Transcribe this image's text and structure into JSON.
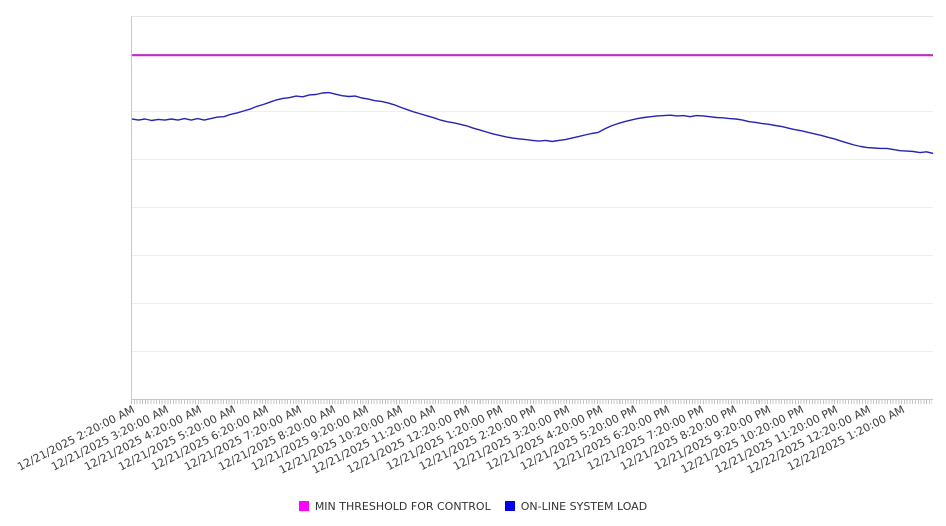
{
  "chart_data": {
    "type": "line",
    "title": "",
    "xlabel": "",
    "ylabel": "",
    "y_axis": {
      "min": 0,
      "max": 100,
      "tick_labels_visible": false
    },
    "grid": true,
    "legend_position": "bottom",
    "x_axis": {
      "tick_labels": [
        "12/21/2025 2:20:00 AM",
        "12/21/2025 3:20:00 AM",
        "12/21/2025 4:20:00 AM",
        "12/21/2025 5:20:00 AM",
        "12/21/2025 6:20:00 AM",
        "12/21/2025 7:20:00 AM",
        "12/21/2025 8:20:00 AM",
        "12/21/2025 9:20:00 AM",
        "12/21/2025 10:20:00 AM",
        "12/21/2025 11:20:00 AM",
        "12/21/2025 12:20:00 PM",
        "12/21/2025 1:20:00 PM",
        "12/21/2025 2:20:00 PM",
        "12/21/2025 3:20:00 PM",
        "12/21/2025 4:20:00 PM",
        "12/21/2025 5:20:00 PM",
        "12/21/2025 6:20:00 PM",
        "12/21/2025 7:20:00 PM",
        "12/21/2025 8:20:00 PM",
        "12/21/2025 9:20:00 PM",
        "12/21/2025 10:20:00 PM",
        "12/21/2025 11:20:00 PM",
        "12/22/2025 12:20:00 AM",
        "12/22/2025 1:20:00 AM"
      ]
    },
    "series": [
      {
        "name": "MIN THRESHOLD FOR CONTROL",
        "type": "constant-line",
        "value": 90,
        "line_color": "#c22ac2",
        "legend_color": "#ff00ff"
      },
      {
        "name": "ON-LINE SYSTEM LOAD",
        "type": "line",
        "line_color": "#2424b4",
        "legend_color": "#0000ee",
        "values": [
          73.3,
          73.0,
          73.3,
          72.9,
          73.2,
          73.0,
          73.3,
          73.0,
          73.4,
          73.0,
          73.4,
          73.0,
          73.4,
          73.8,
          73.9,
          74.5,
          74.9,
          75.4,
          75.9,
          76.6,
          77.1,
          77.7,
          78.3,
          78.7,
          78.9,
          79.3,
          79.1,
          79.6,
          79.7,
          80.1,
          80.2,
          79.8,
          79.4,
          79.2,
          79.3,
          78.8,
          78.5,
          78.1,
          77.9,
          77.5,
          77.0,
          76.3,
          75.7,
          75.1,
          74.6,
          74.1,
          73.6,
          73.0,
          72.6,
          72.3,
          71.9,
          71.5,
          70.9,
          70.4,
          69.9,
          69.4,
          69.0,
          68.6,
          68.3,
          68.1,
          67.9,
          67.7,
          67.5,
          67.7,
          67.4,
          67.7,
          67.9,
          68.3,
          68.7,
          69.1,
          69.5,
          69.8,
          70.7,
          71.5,
          72.1,
          72.6,
          73.0,
          73.4,
          73.7,
          73.9,
          74.1,
          74.2,
          74.3,
          74.1,
          74.2,
          73.9,
          74.2,
          74.1,
          73.9,
          73.7,
          73.6,
          73.4,
          73.3,
          73.0,
          72.6,
          72.4,
          72.1,
          71.9,
          71.6,
          71.3,
          70.9,
          70.5,
          70.2,
          69.8,
          69.4,
          69.0,
          68.5,
          68.1,
          67.5,
          67.0,
          66.5,
          66.1,
          65.8,
          65.7,
          65.6,
          65.6,
          65.3,
          65.0,
          64.9,
          64.8,
          64.5,
          64.7,
          64.3
        ]
      }
    ]
  },
  "legend": {
    "items": [
      {
        "label": "MIN THRESHOLD FOR CONTROL",
        "color": "#ff00ff"
      },
      {
        "label": "ON-LINE SYSTEM LOAD",
        "color": "#0000ee"
      }
    ]
  }
}
